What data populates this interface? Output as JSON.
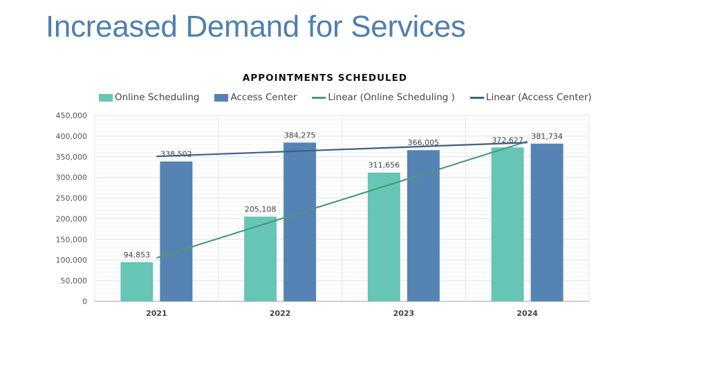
{
  "slide_title": "Increased Demand for Services",
  "chart_data": {
    "type": "bar",
    "title": "APPOINTMENTS SCHEDULED",
    "categories": [
      "2021",
      "2022",
      "2023",
      "2024"
    ],
    "series": [
      {
        "name": "Online Scheduling",
        "values": [
          94853,
          205108,
          311656,
          372627
        ],
        "color": "#67c5b5",
        "labels": [
          "94,853",
          "205,108",
          "311,656",
          "372,627"
        ]
      },
      {
        "name": "Access Center",
        "values": [
          338502,
          384275,
          366005,
          381734
        ],
        "color": "#5584b4",
        "labels": [
          "338,502",
          "384,275",
          "366,005",
          "381,734"
        ]
      }
    ],
    "trendlines": [
      {
        "name": "Linear (Online Scheduling )",
        "of": "Online Scheduling",
        "type": "linear",
        "color": "#4a9a7a"
      },
      {
        "name": "Linear (Access Center)",
        "of": "Access Center",
        "type": "linear",
        "color": "#3f5f82"
      }
    ],
    "ylim": [
      0,
      450000
    ],
    "yticks": [
      "0",
      "50,000",
      "100,000",
      "150,000",
      "200,000",
      "250,000",
      "300,000",
      "350,000",
      "400,000",
      "450,000"
    ],
    "ytick_values": [
      0,
      50000,
      100000,
      150000,
      200000,
      250000,
      300000,
      350000,
      400000,
      450000
    ],
    "grid": true,
    "legend": "top",
    "xlabel": "",
    "ylabel": ""
  }
}
